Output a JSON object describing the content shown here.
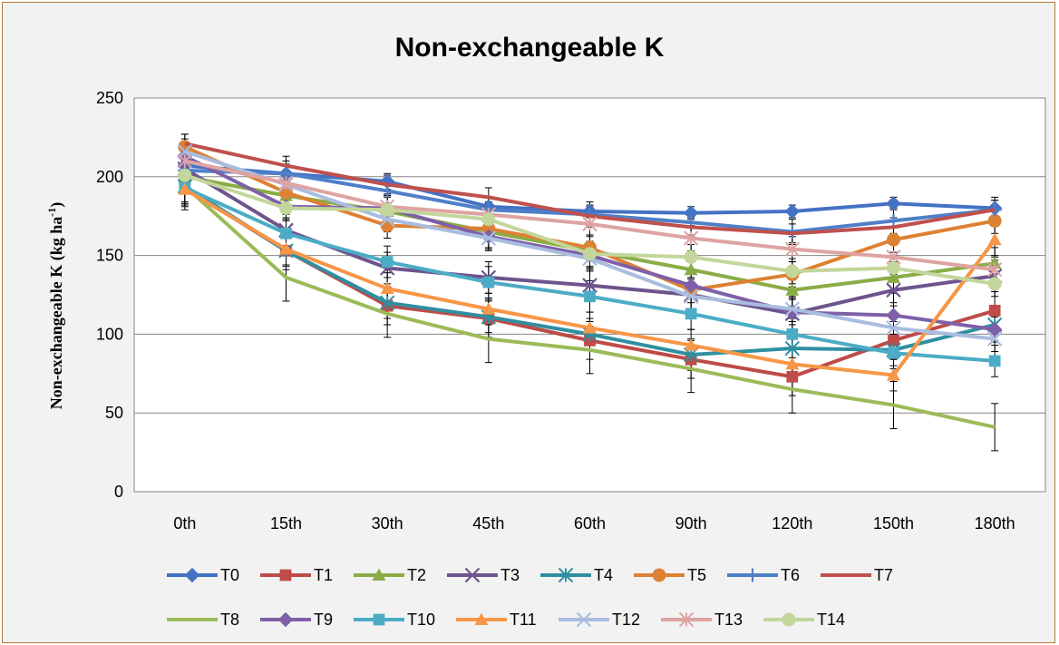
{
  "chart_data": {
    "type": "line",
    "title": "Non-exchangeable K",
    "ylabel": "Non-exchangeable K (kg ha",
    "ylabel_sup": "-1",
    "ylabel_end": ")",
    "xlabel": "",
    "ylim": [
      0,
      250
    ],
    "yticks": [
      0,
      50,
      100,
      150,
      200,
      250
    ],
    "categories": [
      "0th",
      "15th",
      "30th",
      "45th",
      "60th",
      "90th",
      "120th",
      "150th",
      "180th"
    ],
    "grid": "horizontal",
    "legend_position": "bottom",
    "series": [
      {
        "name": "T0",
        "color": "#4472c4",
        "marker": "diamond",
        "values": [
          207,
          202,
          197,
          181,
          178,
          177,
          178,
          183,
          180
        ],
        "err": [
          6,
          6,
          5,
          6,
          4,
          4,
          4,
          4,
          5
        ]
      },
      {
        "name": "T1",
        "color": "#be4b48",
        "marker": "square",
        "values": [
          193,
          153,
          118,
          110,
          96,
          84,
          73,
          96,
          115
        ],
        "err": [
          12,
          12,
          12,
          12,
          12,
          12,
          12,
          12,
          12
        ]
      },
      {
        "name": "T2",
        "color": "#8aac46",
        "marker": "triangle",
        "values": [
          200,
          188,
          178,
          165,
          153,
          141,
          128,
          136,
          145
        ],
        "err": [
          10,
          10,
          10,
          10,
          10,
          10,
          10,
          10,
          10
        ]
      },
      {
        "name": "T3",
        "color": "#6e548d",
        "marker": "x",
        "values": [
          205,
          166,
          142,
          136,
          131,
          125,
          113,
          128,
          137
        ],
        "err": [
          10,
          10,
          10,
          10,
          10,
          10,
          10,
          10,
          10
        ]
      },
      {
        "name": "T4",
        "color": "#2f8fa1",
        "marker": "star",
        "values": [
          194,
          153,
          120,
          111,
          100,
          87,
          91,
          90,
          106
        ],
        "err": [
          10,
          10,
          10,
          10,
          10,
          10,
          10,
          10,
          10
        ]
      },
      {
        "name": "T5",
        "color": "#dd8133",
        "marker": "circle",
        "values": [
          219,
          190,
          169,
          167,
          155,
          128,
          138,
          160,
          172
        ],
        "err": [
          8,
          8,
          8,
          8,
          8,
          8,
          8,
          8,
          8
        ]
      },
      {
        "name": "T6",
        "color": "#4f7fc8",
        "marker": "plus",
        "values": [
          204,
          202,
          191,
          179,
          176,
          171,
          165,
          172,
          179
        ],
        "err": [
          8,
          8,
          8,
          8,
          8,
          8,
          8,
          8,
          8
        ]
      },
      {
        "name": "T7",
        "color": "#c0504d",
        "marker": "none",
        "values": [
          221,
          207,
          195,
          187,
          175,
          168,
          164,
          168,
          179
        ],
        "err": [
          6,
          6,
          6,
          6,
          6,
          6,
          6,
          6,
          6
        ]
      },
      {
        "name": "T8",
        "color": "#9bbb59",
        "marker": "none",
        "values": [
          194,
          136,
          113,
          97,
          90,
          78,
          65,
          55,
          41
        ],
        "err": [
          15,
          15,
          15,
          15,
          15,
          15,
          15,
          15,
          15
        ]
      },
      {
        "name": "T9",
        "color": "#7e5fa8",
        "marker": "diamond",
        "values": [
          213,
          181,
          180,
          162,
          150,
          131,
          114,
          112,
          103
        ],
        "err": [
          8,
          8,
          8,
          8,
          8,
          8,
          8,
          8,
          8
        ]
      },
      {
        "name": "T10",
        "color": "#4bacc6",
        "marker": "square",
        "values": [
          193,
          164,
          146,
          133,
          124,
          113,
          100,
          88,
          83
        ],
        "err": [
          10,
          10,
          10,
          10,
          10,
          10,
          10,
          10,
          10
        ]
      },
      {
        "name": "T11",
        "color": "#f79646",
        "marker": "triangle",
        "values": [
          192,
          154,
          129,
          116,
          104,
          93,
          81,
          74,
          160
        ],
        "err": [
          10,
          10,
          10,
          10,
          10,
          10,
          10,
          10,
          10
        ]
      },
      {
        "name": "T12",
        "color": "#a9bde0",
        "marker": "x",
        "values": [
          216,
          195,
          173,
          161,
          148,
          124,
          116,
          104,
          97
        ],
        "err": [
          8,
          8,
          8,
          8,
          8,
          8,
          8,
          8,
          8
        ]
      },
      {
        "name": "T13",
        "color": "#dea3a2",
        "marker": "star",
        "values": [
          210,
          196,
          181,
          176,
          170,
          161,
          154,
          149,
          141
        ],
        "err": [
          8,
          8,
          8,
          8,
          8,
          8,
          8,
          8,
          8
        ]
      },
      {
        "name": "T14",
        "color": "#c3d69b",
        "marker": "circle",
        "values": [
          201,
          180,
          179,
          173,
          151,
          149,
          140,
          142,
          132
        ],
        "err": [
          8,
          8,
          8,
          8,
          8,
          8,
          8,
          8,
          8
        ]
      }
    ]
  }
}
